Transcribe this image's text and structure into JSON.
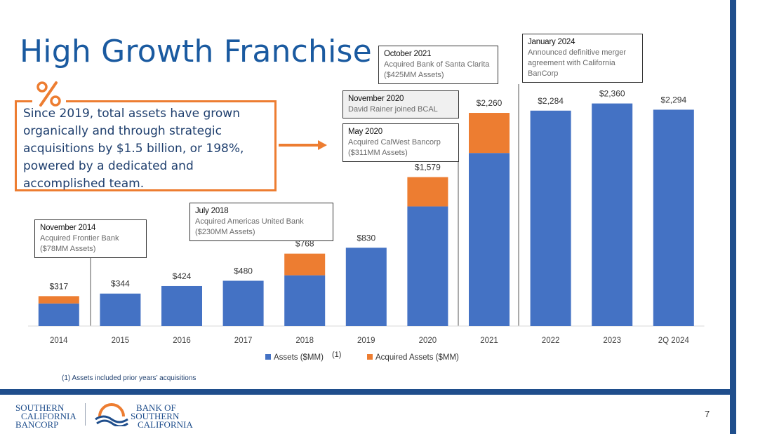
{
  "slide": {
    "title": "High Growth Franchise",
    "callout": "Since 2019, total assets have grown organically and through strategic acquisitions by $1.5 billion, or 198%, powered by a dedicated and accomplished team.",
    "footnote": "(1)  Assets included prior years’ acquisitions",
    "page_number": "7",
    "legend_superscript": "(1)"
  },
  "annotations": [
    {
      "title": "November 2014",
      "lines": [
        "Acquired Frontier Bank",
        "($78MM Assets)"
      ]
    },
    {
      "title": "July 2018",
      "lines": [
        "Acquired Americas United Bank",
        "($230MM Assets)"
      ]
    },
    {
      "title": "May 2020",
      "lines": [
        "Acquired CalWest Bancorp",
        "($311MM Assets)"
      ]
    },
    {
      "title": "November 2020",
      "lines": [
        "David Rainer joined BCAL"
      ]
    },
    {
      "title": "October 2021",
      "lines": [
        "Acquired Bank of Santa Clarita",
        "($425MM Assets)"
      ]
    },
    {
      "title": "January 2024",
      "lines": [
        "Announced definitive merger",
        "agreement with California",
        "BanCorp"
      ]
    }
  ],
  "logos": {
    "left": [
      "SOUTHERN",
      "CALIFORNIA",
      "BANCORP"
    ],
    "right": [
      "BANK OF",
      "SOUTHERN",
      "CALIFORNIA"
    ]
  },
  "colors": {
    "assets": "#4472c4",
    "acquired": "#ed7d31",
    "title": "#1a5aa0",
    "brand": "#1f4e8c"
  },
  "chart_data": {
    "type": "bar",
    "stacked": true,
    "title": "",
    "xlabel": "",
    "ylabel": "",
    "ylim": [
      0,
      2500
    ],
    "categories": [
      "2014",
      "2015",
      "2016",
      "2017",
      "2018",
      "2019",
      "2020",
      "2021",
      "2022",
      "2023",
      "2Q 2024"
    ],
    "series": [
      {
        "name": "Assets ($MM)",
        "values": [
          239,
          344,
          424,
          480,
          538,
          830,
          1268,
          1835,
          2284,
          2360,
          2294
        ]
      },
      {
        "name": "Acquired Assets ($MM)",
        "values": [
          78,
          0,
          0,
          0,
          230,
          0,
          311,
          425,
          0,
          0,
          0
        ]
      }
    ],
    "total_labels": [
      "$317",
      "$344",
      "$424",
      "$480",
      "$768",
      "$830",
      "$1,579",
      "$2,260",
      "$2,284",
      "$2,360",
      "$2,294"
    ],
    "legend": [
      "Assets ($MM)",
      "Acquired Assets ($MM)"
    ],
    "legend_position": "bottom"
  }
}
